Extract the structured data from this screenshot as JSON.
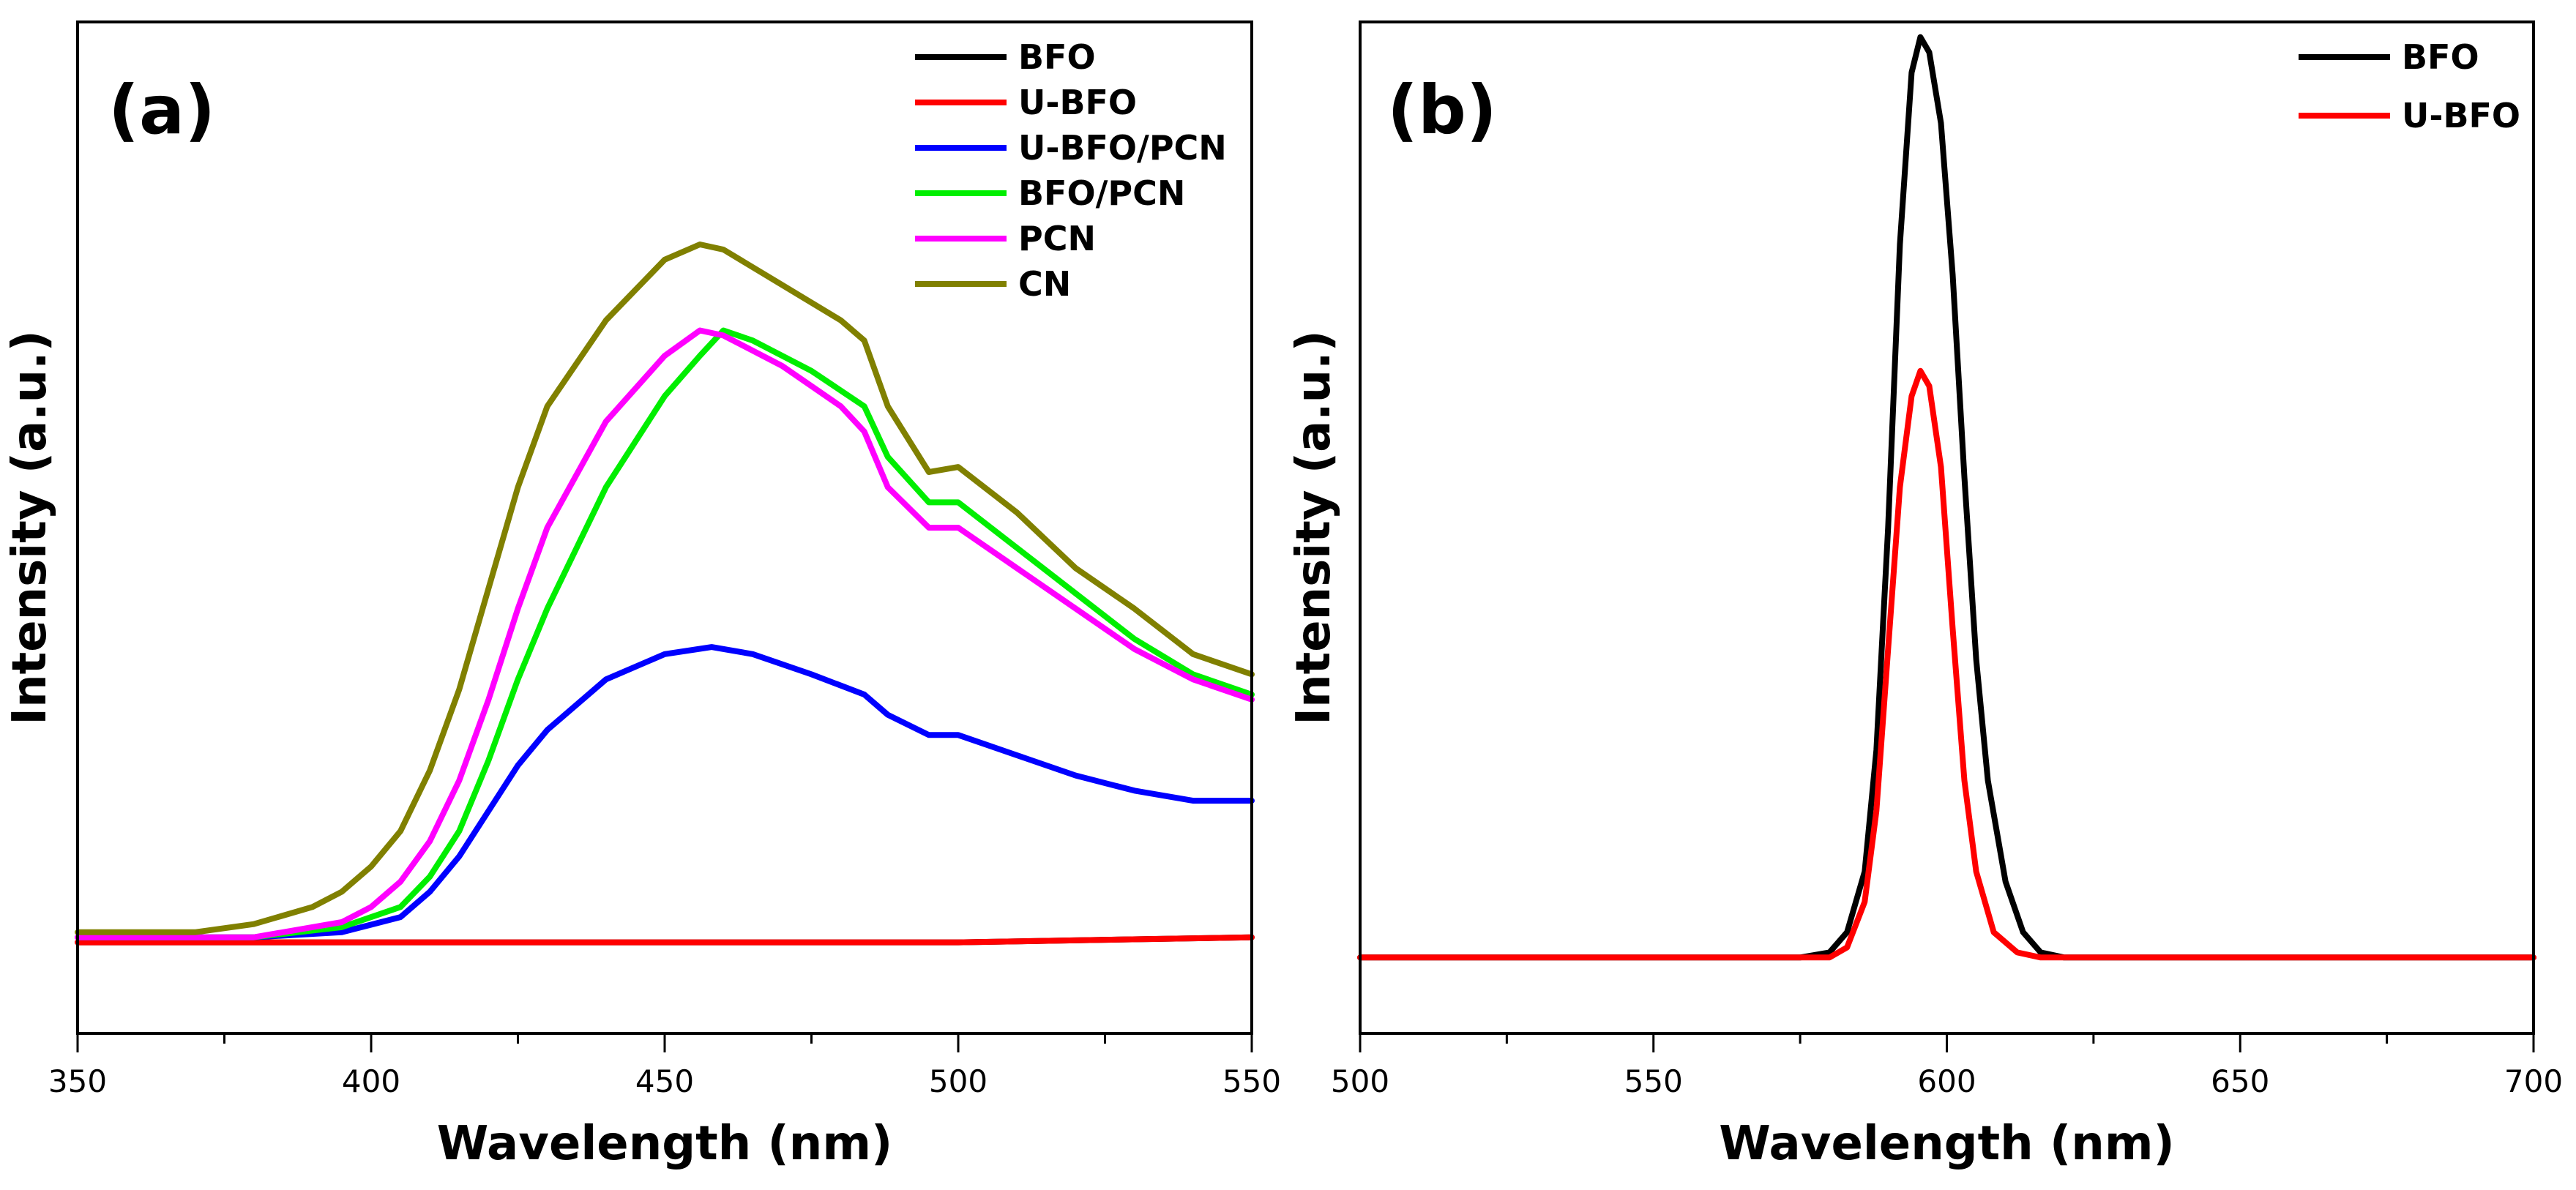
{
  "chart_data": [
    {
      "type": "line",
      "panel_label": "(a)",
      "xlabel": "Wavelength (nm)",
      "ylabel": "Intensity (a.u.)",
      "xlim": [
        350,
        550
      ],
      "ylim": [
        0,
        100
      ],
      "xticks": [
        350,
        400,
        450,
        500,
        550
      ],
      "xtick_labels": [
        "350",
        "400",
        "450",
        "500",
        "550"
      ],
      "legend_position": "top-right",
      "series": [
        {
          "name": "BFO",
          "color": "#000000",
          "x": [
            350,
            400,
            450,
            500,
            550
          ],
          "y": [
            9,
            9,
            9,
            9,
            9.5
          ]
        },
        {
          "name": "U-BFO",
          "color": "#ff0000",
          "x": [
            350,
            400,
            450,
            500,
            550
          ],
          "y": [
            9,
            9,
            9,
            9,
            9.5
          ]
        },
        {
          "name": "U-BFO/PCN",
          "color": "#0000ff",
          "x": [
            350,
            380,
            395,
            405,
            410,
            415,
            420,
            425,
            430,
            440,
            450,
            458,
            465,
            475,
            484,
            488,
            495,
            500,
            510,
            520,
            530,
            540,
            550
          ],
          "y": [
            9.5,
            9.5,
            10,
            11.5,
            14,
            17.5,
            22,
            26.5,
            30,
            35,
            37.5,
            38.2,
            37.5,
            35.5,
            33.5,
            31.5,
            29.5,
            29.5,
            27.5,
            25.5,
            24,
            23,
            23
          ]
        },
        {
          "name": "BFO/PCN",
          "color": "#00ee00",
          "x": [
            350,
            380,
            395,
            405,
            410,
            415,
            420,
            425,
            430,
            440,
            450,
            456,
            460,
            465,
            475,
            484,
            488,
            495,
            500,
            510,
            520,
            530,
            540,
            550
          ],
          "y": [
            9.5,
            9.5,
            10.5,
            12.5,
            15.5,
            20,
            27,
            35,
            42,
            54,
            63,
            67,
            69.5,
            68.5,
            65.5,
            62,
            57,
            52.5,
            52.5,
            48,
            43.5,
            39,
            35.5,
            33.5
          ]
        },
        {
          "name": "PCN",
          "color": "#ff00ff",
          "x": [
            350,
            380,
            395,
            400,
            405,
            410,
            415,
            420,
            425,
            430,
            440,
            450,
            456,
            460,
            470,
            480,
            484,
            488,
            495,
            500,
            510,
            520,
            530,
            540,
            550
          ],
          "y": [
            9.5,
            9.5,
            11,
            12.5,
            15,
            19,
            25,
            33,
            42,
            50,
            60.5,
            67,
            69.5,
            69,
            66,
            62,
            59.5,
            54,
            50,
            50,
            46,
            42,
            38,
            35,
            33
          ]
        },
        {
          "name": "CN",
          "color": "#808000",
          "x": [
            350,
            370,
            380,
            390,
            395,
            400,
            405,
            410,
            415,
            420,
            425,
            430,
            440,
            450,
            456,
            460,
            470,
            480,
            484,
            488,
            495,
            500,
            510,
            520,
            530,
            540,
            550
          ],
          "y": [
            10,
            10,
            10.8,
            12.5,
            14,
            16.5,
            20,
            26,
            34,
            44,
            54,
            62,
            70.5,
            76.5,
            78,
            77.5,
            74,
            70.5,
            68.5,
            62,
            55.5,
            56,
            51.5,
            46,
            42,
            37.5,
            35.5
          ]
        }
      ]
    },
    {
      "type": "line",
      "panel_label": "(b)",
      "xlabel": "Wavelength (nm)",
      "ylabel": "Intensity (a.u.)",
      "xlim": [
        500,
        700
      ],
      "ylim": [
        0,
        100
      ],
      "xticks": [
        500,
        550,
        600,
        650,
        700
      ],
      "xtick_labels": [
        "500",
        "550",
        "600",
        "650",
        "700"
      ],
      "legend_position": "top-right",
      "series": [
        {
          "name": "BFO",
          "color": "#000000",
          "x": [
            500,
            575,
            580,
            583,
            586,
            588,
            590,
            592,
            594,
            595.5,
            597,
            599,
            601,
            603,
            605,
            607,
            610,
            613,
            616,
            620,
            700
          ],
          "y": [
            7.5,
            7.5,
            8,
            10,
            16,
            28,
            50,
            78,
            95,
            98.5,
            97,
            90,
            75,
            55,
            37,
            25,
            15,
            10,
            8,
            7.5,
            7.5
          ]
        },
        {
          "name": "U-BFO",
          "color": "#ff0000",
          "x": [
            500,
            580,
            583,
            586,
            588,
            590,
            592,
            594,
            595.5,
            597,
            599,
            601,
            603,
            605,
            608,
            612,
            616,
            700
          ],
          "y": [
            7.5,
            7.5,
            8.5,
            13,
            22,
            38,
            54,
            63,
            65.5,
            64,
            56,
            40,
            25,
            16,
            10,
            8,
            7.5,
            7.5
          ]
        }
      ]
    }
  ]
}
